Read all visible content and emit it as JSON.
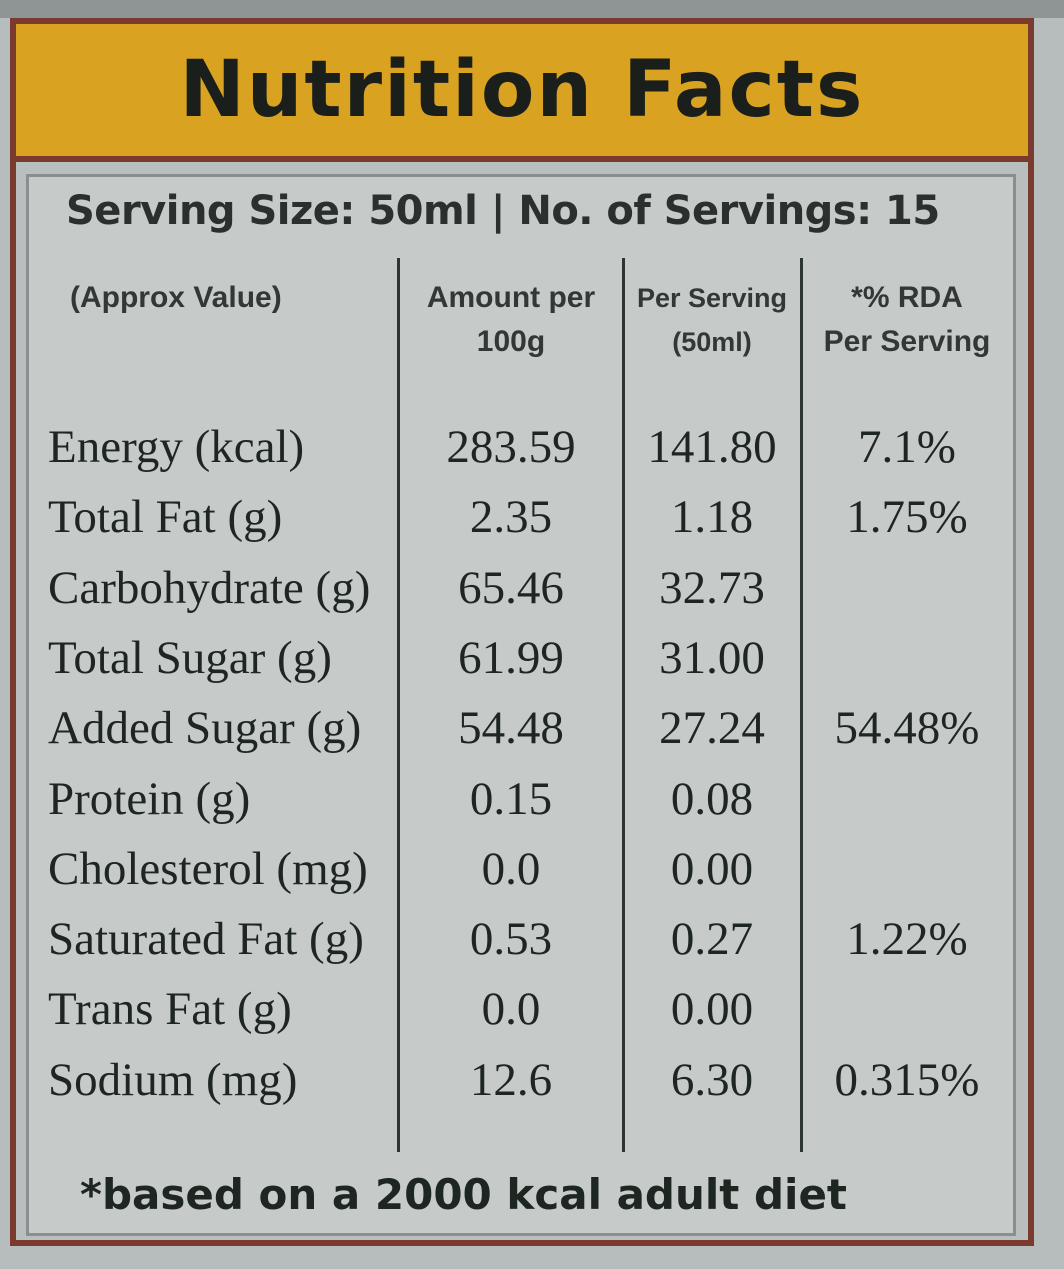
{
  "title": "Nutrition Facts",
  "serving_line": "Serving Size: 50ml | No. of Servings: 15",
  "table": {
    "headers": [
      {
        "line1": "(Approx Value)",
        "line2": ""
      },
      {
        "line1": "Amount per",
        "line2": "100g"
      },
      {
        "line1": "Per Serving",
        "line2": "(50ml)"
      },
      {
        "line1": "*% RDA",
        "line2": "Per Serving"
      }
    ],
    "rows": [
      {
        "label": "Energy (kcal)",
        "per100": "283.59",
        "serving": "141.80",
        "rda": "7.1%"
      },
      {
        "label": "Total Fat (g)",
        "per100": "2.35",
        "serving": "1.18",
        "rda": "1.75%"
      },
      {
        "label": "Carbohydrate (g)",
        "per100": "65.46",
        "serving": "32.73",
        "rda": ""
      },
      {
        "label": "Total Sugar (g)",
        "per100": "61.99",
        "serving": "31.00",
        "rda": ""
      },
      {
        "label": "Added Sugar (g)",
        "per100": "54.48",
        "serving": "27.24",
        "rda": "54.48%"
      },
      {
        "label": "Protein (g)",
        "per100": "0.15",
        "serving": "0.08",
        "rda": ""
      },
      {
        "label": "Cholesterol (mg)",
        "per100": "0.0",
        "serving": "0.00",
        "rda": ""
      },
      {
        "label": "Saturated Fat (g)",
        "per100": "0.53",
        "serving": "0.27",
        "rda": "1.22%"
      },
      {
        "label": "Trans Fat (g)",
        "per100": "0.0",
        "serving": "0.00",
        "rda": ""
      },
      {
        "label": "Sodium (mg)",
        "per100": "12.6",
        "serving": "6.30",
        "rda": "0.315%"
      }
    ]
  },
  "footnote": "*based on a 2000 kcal adult diet",
  "colors": {
    "header_bg": "#d9a321",
    "border": "#7a3a2e",
    "panel_bg": "#c6cbca",
    "text": "#1e2622"
  }
}
